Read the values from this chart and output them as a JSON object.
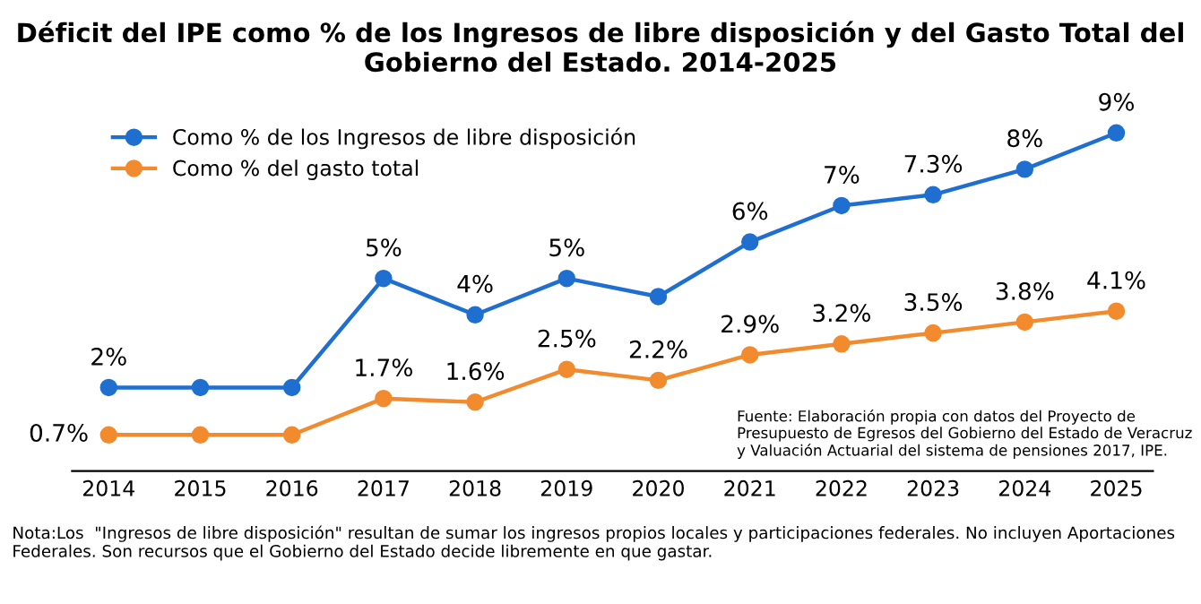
{
  "chart_data": {
    "type": "line",
    "title": "Déficit del IPE como % de los Ingresos de libre disposición y del Gasto Total del\nGobierno del Estado. 2014-2025",
    "categories": [
      "2014",
      "2015",
      "2016",
      "2017",
      "2018",
      "2019",
      "2020",
      "2021",
      "2022",
      "2023",
      "2024",
      "2025"
    ],
    "series": [
      {
        "name": "Como % de los Ingresos de libre disposición",
        "color": "#1f6fd0",
        "values": [
          2,
          2,
          2,
          5,
          4,
          5,
          4.5,
          6,
          7,
          7.3,
          8,
          9
        ],
        "value_labels": [
          "2%",
          null,
          null,
          "5%",
          "4%",
          "5%",
          null,
          "6%",
          "7%",
          "7.3%",
          "8%",
          "9%"
        ]
      },
      {
        "name": "Como % del gasto total",
        "color": "#f28a2e",
        "values": [
          0.7,
          0.7,
          0.7,
          1.7,
          1.6,
          2.5,
          2.2,
          2.9,
          3.2,
          3.5,
          3.8,
          4.1
        ],
        "value_labels": [
          "0.7%",
          null,
          null,
          "1.7%",
          "1.6%",
          "2.5%",
          "2.2%",
          "2.9%",
          "3.2%",
          "3.5%",
          "3.8%",
          "4.1%"
        ]
      }
    ],
    "legend": "top left",
    "marker": "circle",
    "line_style": "solid",
    "grid": false,
    "annotations": [
      "Fuente: Elaboración propia con datos del Proyecto de Presupuesto de Egresos del Gobierno del Estado de Veracruz y Valuación Actuarial del sistema de pensiones 2017, IPE.",
      "Nota:Los  \"Ingresos de libre disposición\" resultan de sumar los ingresos propios locales y participaciones federales. No incluyen Aportaciones Federales. Son recursos que el Gobierno del Estado decide libremente en que gastar."
    ]
  }
}
